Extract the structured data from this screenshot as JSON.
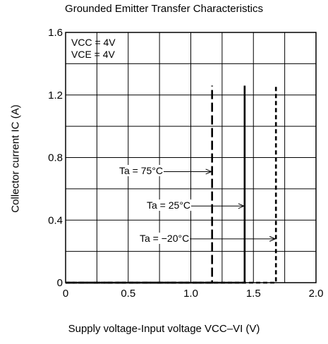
{
  "chart_data": {
    "type": "line",
    "title": "Grounded Emitter Transfer Characteristics",
    "xlabel": "Supply voltage-Input voltage  VCC–VI (V)",
    "ylabel": "Collector current  IC (A)",
    "xlim": [
      0,
      2.0
    ],
    "ylim": [
      0,
      1.6
    ],
    "x_ticks": [
      "0",
      "0.5",
      "1.0",
      "1.5",
      "2.0"
    ],
    "y_ticks": [
      "0",
      "0.4",
      "0.8",
      "1.2",
      "1.6"
    ],
    "grid": true,
    "conditions": [
      "VCC = 4V",
      "VCE = 4V"
    ],
    "series": [
      {
        "name": "Ta = 75°C",
        "style": "long-dash",
        "x": [
          0,
          1.17,
          1.17
        ],
        "y": [
          0,
          0,
          1.26
        ]
      },
      {
        "name": "Ta = 25°C",
        "style": "solid",
        "x": [
          0,
          1.43,
          1.43
        ],
        "y": [
          0,
          0,
          1.26
        ]
      },
      {
        "name": "Ta = −20°C",
        "style": "short-dash",
        "x": [
          0,
          1.68,
          1.68
        ],
        "y": [
          0,
          0,
          1.26
        ]
      }
    ],
    "annotations": [
      {
        "text": "Ta = 75°C",
        "x": 1.17,
        "y": 0.71
      },
      {
        "text": "Ta = 25°C",
        "x": 1.43,
        "y": 0.49
      },
      {
        "text": "Ta = −20°C",
        "x": 1.68,
        "y": 0.28
      }
    ]
  }
}
